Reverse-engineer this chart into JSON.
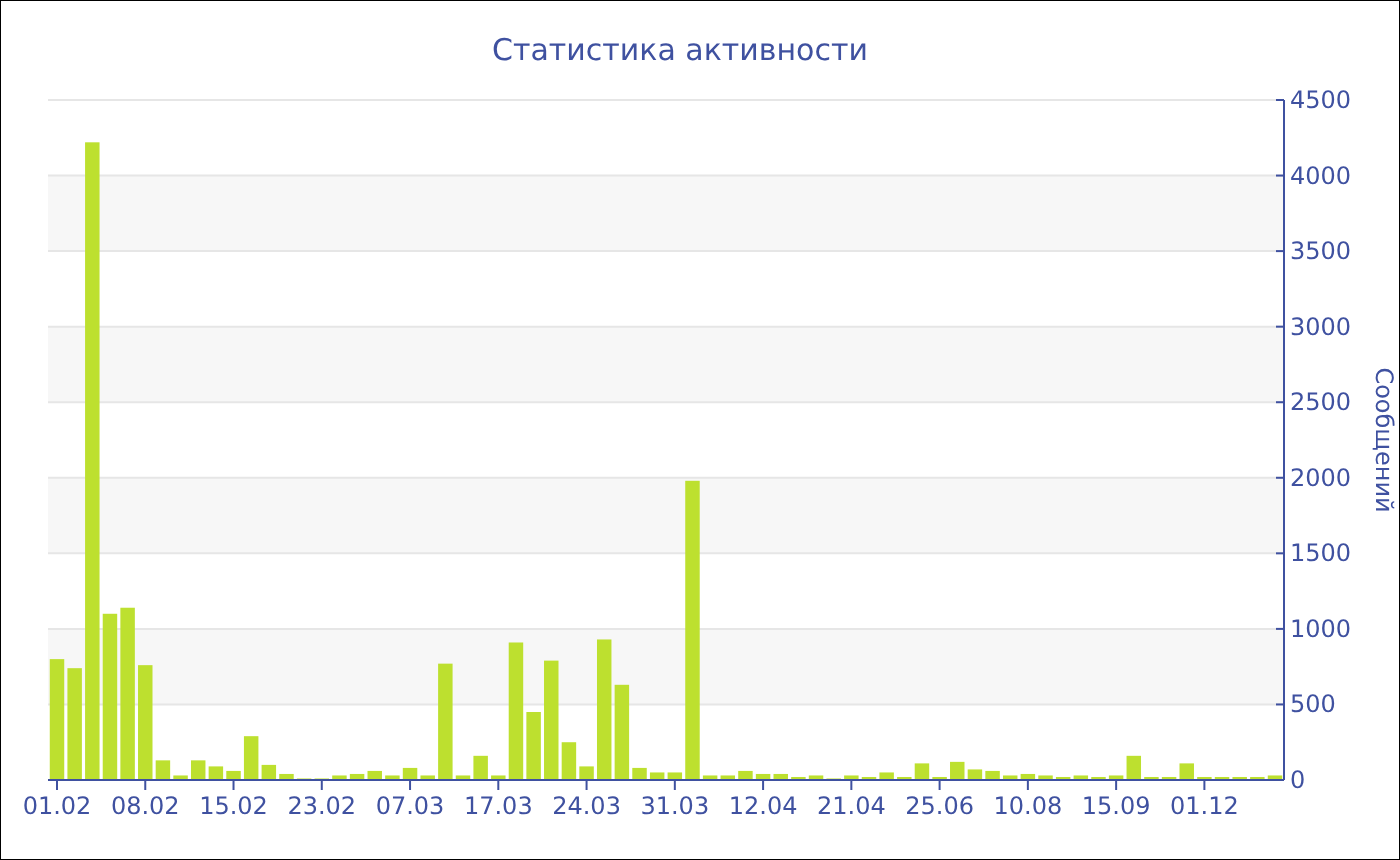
{
  "chart_data": {
    "type": "bar",
    "title": "Статистика активности",
    "ylabel": "Сообщений",
    "categories": [
      "01.02",
      null,
      null,
      null,
      null,
      "08.02",
      null,
      null,
      null,
      null,
      "15.02",
      null,
      null,
      null,
      null,
      "23.02",
      null,
      null,
      null,
      null,
      "07.03",
      null,
      null,
      null,
      null,
      "17.03",
      null,
      null,
      null,
      null,
      "24.03",
      null,
      null,
      null,
      null,
      "31.03",
      null,
      null,
      null,
      null,
      "12.04",
      null,
      null,
      null,
      null,
      "21.04",
      null,
      null,
      null,
      null,
      "25.06",
      null,
      null,
      null,
      null,
      "10.08",
      null,
      null,
      null,
      null,
      "15.09",
      null,
      null,
      null,
      null,
      "01.12",
      null,
      null,
      null,
      null
    ],
    "values": [
      800,
      740,
      4220,
      1100,
      1140,
      760,
      130,
      30,
      130,
      90,
      60,
      290,
      100,
      40,
      10,
      10,
      30,
      40,
      60,
      30,
      80,
      30,
      770,
      30,
      160,
      30,
      910,
      450,
      790,
      250,
      90,
      930,
      630,
      80,
      50,
      50,
      1980,
      30,
      30,
      60,
      40,
      40,
      20,
      30,
      10,
      30,
      20,
      50,
      20,
      110,
      20,
      120,
      70,
      60,
      30,
      40,
      30,
      20,
      30,
      20,
      30,
      160,
      20,
      20,
      110,
      20,
      20,
      20,
      20,
      30
    ],
    "color": "#bde02f",
    "ylim": [
      0,
      4500
    ],
    "yticks": [
      0,
      500,
      1000,
      1500,
      2000,
      2500,
      3000,
      3500,
      4000,
      4500
    ],
    "grid": "y"
  }
}
